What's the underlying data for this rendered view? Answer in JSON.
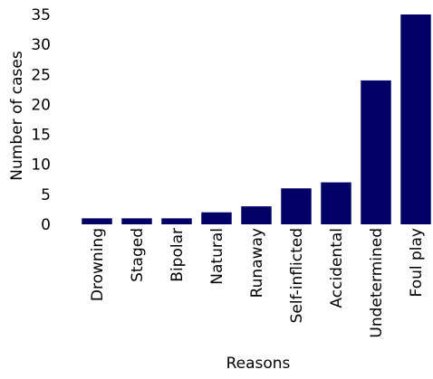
{
  "chart_data": {
    "type": "bar",
    "categories": [
      "Drowning",
      "Staged",
      "Bipolar",
      "Natural",
      "Runaway",
      "Self-inflicted",
      "Accidental",
      "Undetermined",
      "Foul play"
    ],
    "values": [
      1,
      1,
      1,
      2,
      3,
      6,
      7,
      24,
      35
    ],
    "title": "",
    "xlabel": "Reasons",
    "ylabel": "Number of cases",
    "ylim": [
      0,
      35
    ],
    "yticks": [
      0,
      5,
      10,
      15,
      20,
      25,
      30,
      35
    ],
    "grid": false,
    "legend": "none",
    "bar_color": "#000066"
  }
}
